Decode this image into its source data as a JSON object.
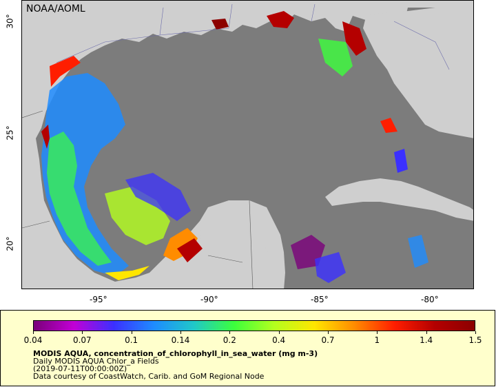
{
  "map": {
    "agency_label": "NOAA/AOML",
    "ocean_color": "#7c7c7c",
    "land_color": "#cfcfcf",
    "x_ticks": [
      "-95°",
      "-90°",
      "-85°",
      "-80°"
    ],
    "y_ticks": [
      "30°",
      "25°",
      "20°"
    ]
  },
  "legend": {
    "colorbar_labels": [
      "0.04",
      "0.07",
      "0.1",
      "0.14",
      "0.2",
      "0.4",
      "0.7",
      "1",
      "1.4",
      "1.5"
    ],
    "colorbar_colors": [
      "#7a007a",
      "#c200d6",
      "#3b30ff",
      "#1e8cff",
      "#20c8c8",
      "#3cff3c",
      "#b4ff1e",
      "#ffe600",
      "#ff8c00",
      "#ff1e00",
      "#b40000",
      "#8c0000"
    ],
    "title": "MODIS AQUA, concentration_of_chlorophyll_in_sea_water (mg m-3)",
    "subtitle": "Daily MODIS AQUA Chlor_a Fields",
    "timestamp": "(2019-07-11T00:00:00Z)",
    "credit": "Data courtesy of CoastWatch, Carib. and GoM Regional Node"
  }
}
